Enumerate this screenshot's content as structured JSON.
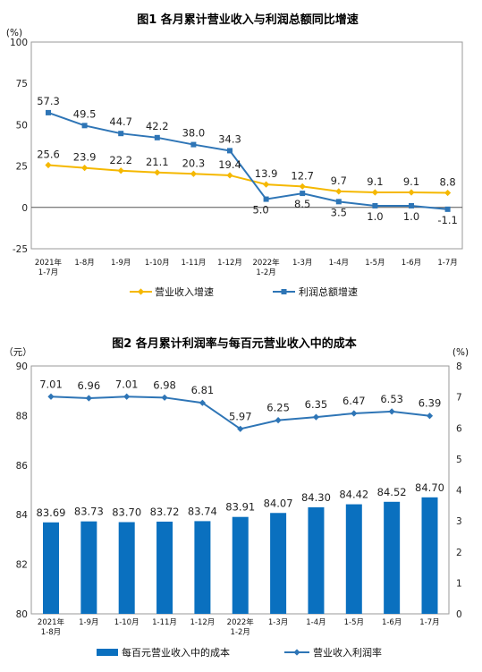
{
  "chart_data": [
    {
      "type": "line",
      "title": "图1  各月累计营业收入与利润总额同比增速",
      "y_unit": "(%)",
      "ylim": [
        -25,
        100
      ],
      "yticks": [
        "-25",
        "0",
        "25",
        "50",
        "75",
        "100"
      ],
      "categories": [
        [
          "2021年",
          "1-7月"
        ],
        [
          "1-8月"
        ],
        [
          "1-9月"
        ],
        [
          "1-10月"
        ],
        [
          "1-11月"
        ],
        [
          "1-12月"
        ],
        [
          "2022年",
          "1-2月"
        ],
        [
          "1-3月"
        ],
        [
          "1-4月"
        ],
        [
          "1-5月"
        ],
        [
          "1-6月"
        ],
        [
          "1-7月"
        ]
      ],
      "series": [
        {
          "name": "营业收入增速",
          "color": "#F5B800",
          "marker": "diamond",
          "values": [
            25.6,
            23.9,
            22.2,
            21.1,
            20.3,
            19.4,
            13.9,
            12.7,
            9.7,
            9.1,
            9.1,
            8.8
          ],
          "labels": [
            "25.6",
            "23.9",
            "22.2",
            "21.1",
            "20.3",
            "19.4",
            "13.9",
            "12.7",
            "9.7",
            "9.1",
            "9.1",
            "8.8"
          ]
        },
        {
          "name": "利润总额增速",
          "color": "#2E75B6",
          "marker": "square",
          "values": [
            57.3,
            49.5,
            44.7,
            42.2,
            38.0,
            34.3,
            5.0,
            8.5,
            3.5,
            1.0,
            1.0,
            -1.1
          ],
          "labels": [
            "57.3",
            "49.5",
            "44.7",
            "42.2",
            "38.0",
            "34.3",
            "5.0",
            "8.5",
            "3.5",
            "1.0",
            "1.0",
            "-1.1"
          ]
        }
      ],
      "grid": false,
      "legend": "bottom"
    },
    {
      "type": "bar+line",
      "title": "图2  各月累计利润率与每百元营业收入中的成本",
      "y_left_unit": "（元）",
      "y_right_unit": "(%)",
      "ylim_left": [
        80,
        90
      ],
      "ylim_right": [
        0,
        8
      ],
      "yticks_left": [
        "80",
        "82",
        "84",
        "86",
        "88",
        "90"
      ],
      "yticks_right": [
        "0",
        "1",
        "2",
        "3",
        "4",
        "5",
        "6",
        "7",
        "8"
      ],
      "categories": [
        [
          "2021年",
          "1-8月"
        ],
        [
          "1-9月"
        ],
        [
          "1-10月"
        ],
        [
          "1-11月"
        ],
        [
          "1-12月"
        ],
        [
          "2022年",
          "1-2月"
        ],
        [
          "1-3月"
        ],
        [
          "1-4月"
        ],
        [
          "1-5月"
        ],
        [
          "1-6月"
        ],
        [
          "1-7月"
        ]
      ],
      "bars": {
        "name": "每百元营业收入中的成本",
        "color": "#0A70BF",
        "axis": "left",
        "values": [
          83.69,
          83.73,
          83.7,
          83.72,
          83.74,
          83.91,
          84.07,
          84.3,
          84.42,
          84.52,
          84.7
        ],
        "labels": [
          "83.69",
          "83.73",
          "83.70",
          "83.72",
          "83.74",
          "83.91",
          "84.07",
          "84.30",
          "84.42",
          "84.52",
          "84.70"
        ]
      },
      "line": {
        "name": "营业收入利润率",
        "color": "#2E75B6",
        "marker": "diamond",
        "axis": "right",
        "values": [
          7.01,
          6.96,
          7.01,
          6.98,
          6.81,
          5.97,
          6.25,
          6.35,
          6.47,
          6.53,
          6.39
        ],
        "labels": [
          "7.01",
          "6.96",
          "7.01",
          "6.98",
          "6.81",
          "5.97",
          "6.25",
          "6.35",
          "6.47",
          "6.53",
          "6.39"
        ]
      },
      "grid": false,
      "legend": "bottom"
    }
  ]
}
